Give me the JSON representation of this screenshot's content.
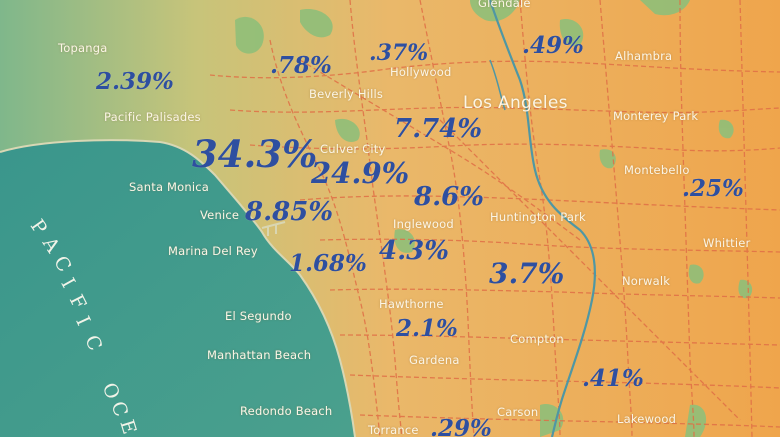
{
  "ocean": {
    "label_letters": [
      "P",
      "A",
      "C",
      "I",
      "F",
      "I",
      "C",
      "O",
      "C",
      "E"
    ]
  },
  "cities": {
    "glendale": "Glendale",
    "topanga": "Topanga",
    "hollywood": "Hollywood",
    "alhambra": "Alhambra",
    "beverly_hills": "Beverly Hills",
    "los_angeles": "Los Angeles",
    "pacific_palisades": "Pacific Palisades",
    "monterey_park": "Monterey Park",
    "culver_city": "Culver City",
    "montebello": "Montebello",
    "santa_monica": "Santa Monica",
    "venice": "Venice",
    "inglewood": "Inglewood",
    "huntington_park": "Huntington Park",
    "whittier": "Whittier",
    "marina_del_rey": "Marina Del Rey",
    "norwalk": "Norwalk",
    "hawthorne": "Hawthorne",
    "el_segundo": "El Segundo",
    "compton": "Compton",
    "manhattan_beach": "Manhattan Beach",
    "gardena": "Gardena",
    "carson": "Carson",
    "redondo_beach": "Redondo Beach",
    "lakewood": "Lakewood",
    "torrance": "Torrance"
  },
  "percentages": {
    "topanga": "2.39%",
    "beverly_hills": ".78%",
    "hollywood": ".37%",
    "alhambra": ".49%",
    "santa_monica": "34.3%",
    "culver_city": "24.9%",
    "downtown": "7.74%",
    "inglewood": "8.6%",
    "venice": "8.85%",
    "whittier": ".25%",
    "marina_del_rey": "1.68%",
    "inglewood_south": "4.3%",
    "compton": "3.7%",
    "hawthorne": "2.1%",
    "lakewood": ".41%",
    "torrance": ".29%"
  },
  "colors": {
    "ocean": "#3f9a8e",
    "land_west": "#86b98a",
    "land_east": "#efae55",
    "parks": "#8fc27a",
    "roads": "#e3744a",
    "river": "#4f9aa5",
    "percent_text": "#2e4fa0",
    "city_text": "#fbf5e6"
  }
}
